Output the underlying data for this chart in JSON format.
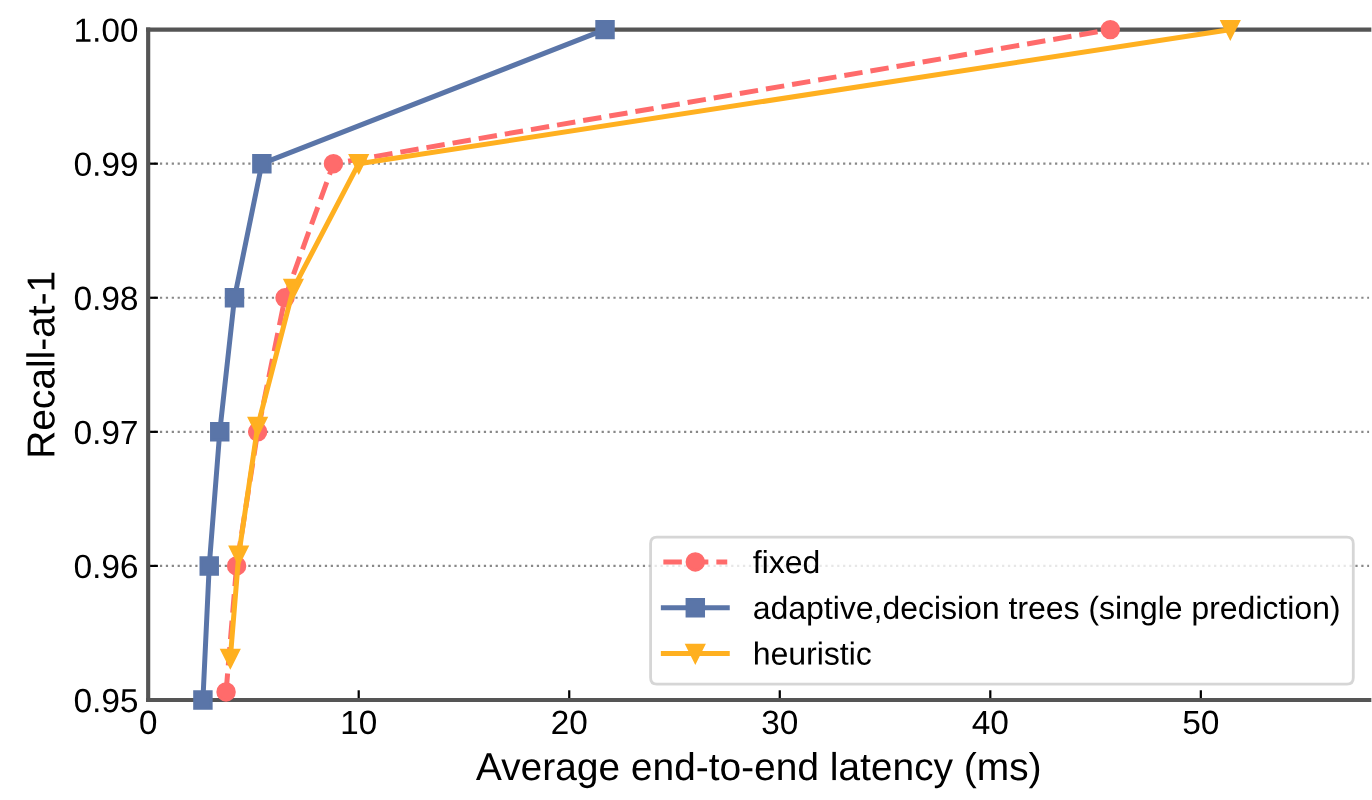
{
  "chart_data": {
    "type": "line",
    "xlabel": "Average end-to-end latency (ms)",
    "ylabel": "Recall-at-1",
    "xlim": [
      0,
      58
    ],
    "xticks": [
      0,
      10,
      20,
      30,
      40,
      50
    ],
    "ylim": [
      0.95,
      1.0
    ],
    "yticks": [
      {
        "value": 0.95,
        "label": "0.95"
      },
      {
        "value": 0.96,
        "label": "0.96"
      },
      {
        "value": 0.97,
        "label": "0.97"
      },
      {
        "value": 0.98,
        "label": "0.98"
      },
      {
        "value": 0.99,
        "label": "0.99"
      },
      {
        "value": 1.0,
        "label": "1.00"
      }
    ],
    "grid": "y",
    "legend": "bottom right",
    "series": [
      {
        "name": "fixed",
        "color": "#ff6b6b",
        "marker": "circle",
        "line_style": "dashed",
        "x": [
          3.7,
          4.2,
          5.2,
          6.5,
          8.8,
          45.7
        ],
        "values": [
          0.9506,
          0.96,
          0.97,
          0.98,
          0.99,
          1.0
        ]
      },
      {
        "name": "adaptive,decision trees (single prediction)",
        "color": "#5a75a8",
        "marker": "square",
        "line_style": "solid",
        "x": [
          2.6,
          2.9,
          3.4,
          4.1,
          5.4,
          21.7
        ],
        "values": [
          0.95,
          0.96,
          0.97,
          0.98,
          0.99,
          1.0
        ]
      },
      {
        "name": "heuristic",
        "color": "#ffb020",
        "marker": "triangle",
        "line_style": "solid",
        "x": [
          3.9,
          4.3,
          5.2,
          6.9,
          10.0,
          51.4
        ],
        "values": [
          0.9531,
          0.9608,
          0.9704,
          0.9807,
          0.99,
          1.0
        ]
      }
    ]
  }
}
